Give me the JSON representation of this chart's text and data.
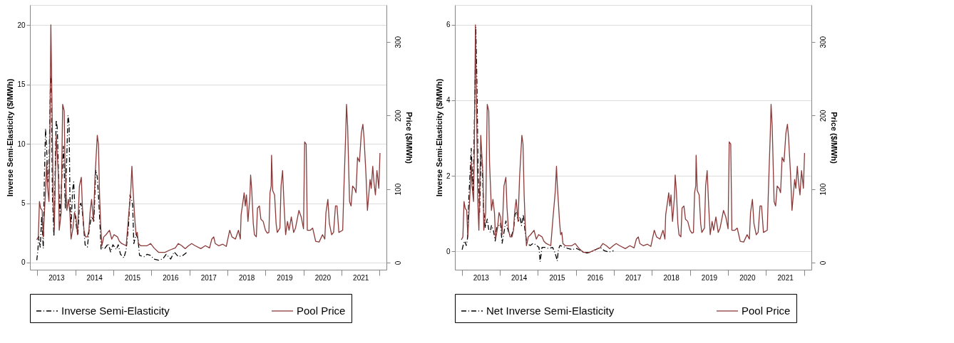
{
  "chart_data": [
    {
      "type": "line",
      "xlim": [
        2012.81,
        2022.18
      ],
      "ylim": [
        -0.6,
        21.7
      ],
      "yticks": [
        0,
        5,
        10,
        15,
        20
      ],
      "y2lim": [
        -9.6,
        350
      ],
      "y2ticks": [
        0,
        100,
        200,
        300
      ],
      "xticks": [
        {
          "value": 2013,
          "label": null
        },
        {
          "value": 2013.5,
          "label": "2013"
        },
        {
          "value": 2014,
          "label": null
        },
        {
          "value": 2014.5,
          "label": "2014"
        },
        {
          "value": 2015,
          "label": null
        },
        {
          "value": 2015.5,
          "label": "2015"
        },
        {
          "value": 2016,
          "label": null
        },
        {
          "value": 2016.5,
          "label": "2016"
        },
        {
          "value": 2017,
          "label": null
        },
        {
          "value": 2017.5,
          "label": "2017"
        },
        {
          "value": 2018,
          "label": null
        },
        {
          "value": 2018.5,
          "label": "2018"
        },
        {
          "value": 2019,
          "label": null
        },
        {
          "value": 2019.5,
          "label": "2019"
        },
        {
          "value": 2020,
          "label": null
        },
        {
          "value": 2020.5,
          "label": "2020"
        },
        {
          "value": 2021,
          "label": null
        },
        {
          "value": 2021.5,
          "label": "2021"
        },
        {
          "value": 2022,
          "label": null
        }
      ],
      "ylabel": "Inverse Semi-Elasticity ($/MWh)",
      "y2label": "Price ($/MWh)",
      "grid": "y",
      "legend": "bottom",
      "series": [
        {
          "name": "Inverse Semi-Elasticity",
          "color": "#000000",
          "line_style": "dashed",
          "x": [
            2012.99,
            2013.02,
            2013.04,
            2013.08,
            2013.12,
            2013.16,
            2013.19,
            2013.22,
            2013.25,
            2013.28,
            2013.31,
            2013.35,
            2013.37,
            2013.4,
            2013.44,
            2013.5,
            2013.53,
            2013.56,
            2013.6,
            2013.64,
            2013.69,
            2013.74,
            2013.78,
            2013.81,
            2013.84,
            2013.86,
            2013.89,
            2013.93,
            2013.96,
            2014.0,
            2014.04,
            2014.07,
            2014.11,
            2014.15,
            2014.19,
            2014.26,
            2014.32,
            2014.37,
            2014.43,
            2014.49,
            2014.54,
            2014.58,
            2014.61,
            2014.64,
            2014.68,
            2014.73,
            2014.78,
            2014.87,
            2014.93,
            2014.99,
            2015.08,
            2015.13,
            2015.19,
            2015.28,
            2015.34,
            2015.4,
            2015.44,
            2015.49,
            2015.51,
            2015.54,
            2015.6,
            2015.65,
            2015.69,
            2015.81,
            2015.89,
            2015.98,
            2016.07,
            2016.19,
            2016.3,
            2016.39,
            2016.51,
            2016.6,
            2016.71,
            2016.83,
            2016.95
          ],
          "values": [
            0.2,
            1.1,
            2.2,
            1.3,
            3.9,
            1.2,
            7.2,
            11.3,
            9.6,
            6.8,
            7.6,
            15.7,
            15.4,
            5.7,
            2.2,
            12.0,
            11.3,
            7.6,
            3.9,
            6.5,
            9.8,
            4.6,
            9.1,
            12.4,
            11.7,
            5.7,
            2.9,
            6.1,
            6.8,
            3.9,
            2.8,
            2.4,
            4.8,
            5.0,
            4.2,
            1.5,
            1.3,
            2.9,
            3.9,
            3.5,
            7.8,
            7.2,
            5.7,
            3.9,
            1.1,
            1.3,
            1.2,
            1.6,
            0.9,
            1.5,
            1.1,
            1.5,
            0.7,
            0.4,
            1.1,
            3.1,
            5.7,
            5.2,
            4.8,
            1.6,
            2.4,
            2.0,
            0.6,
            0.5,
            0.7,
            0.6,
            0.3,
            0.2,
            0.3,
            0.7,
            0.3,
            0.9,
            0.5,
            0.6,
            0.9
          ]
        },
        {
          "name": "Pool Price",
          "color": "#8b3a3a",
          "axis": "y2",
          "line_style": "solid",
          "x": [
            2012.99,
            2013.03,
            2013.06,
            2013.09,
            2013.13,
            2013.16,
            2013.19,
            2013.22,
            2013.25,
            2013.27,
            2013.31,
            2013.33,
            2013.36,
            2013.39,
            2013.42,
            2013.45,
            2013.5,
            2013.56,
            2013.58,
            2013.63,
            2013.67,
            2013.71,
            2013.73,
            2013.78,
            2013.82,
            2013.86,
            2013.89,
            2013.94,
            2013.98,
            2014.02,
            2014.06,
            2014.11,
            2014.16,
            2014.19,
            2014.23,
            2014.27,
            2014.32,
            2014.36,
            2014.39,
            2014.43,
            2014.48,
            2014.52,
            2014.58,
            2014.61,
            2014.64,
            2014.67,
            2014.7,
            2014.75,
            2014.81,
            2014.9,
            2014.96,
            2015.02,
            2015.11,
            2015.16,
            2015.22,
            2015.34,
            2015.4,
            2015.46,
            2015.49,
            2015.51,
            2015.57,
            2015.6,
            2015.63,
            2015.66,
            2015.72,
            2015.89,
            2015.98,
            2016.07,
            2016.19,
            2016.36,
            2016.48,
            2016.63,
            2016.71,
            2016.8,
            2016.89,
            2016.98,
            2017.06,
            2017.15,
            2017.3,
            2017.42,
            2017.53,
            2017.59,
            2017.64,
            2017.68,
            2017.77,
            2017.88,
            2017.97,
            2018.06,
            2018.12,
            2018.21,
            2018.29,
            2018.34,
            2018.36,
            2018.41,
            2018.44,
            2018.47,
            2018.5,
            2018.54,
            2018.59,
            2018.61,
            2018.64,
            2018.68,
            2018.71,
            2018.76,
            2018.79,
            2018.84,
            2018.88,
            2018.94,
            2019.0,
            2019.05,
            2019.09,
            2019.12,
            2019.15,
            2019.16,
            2019.19,
            2019.24,
            2019.28,
            2019.31,
            2019.38,
            2019.41,
            2019.45,
            2019.49,
            2019.53,
            2019.58,
            2019.62,
            2019.68,
            2019.74,
            2019.79,
            2019.88,
            2019.94,
            2020.0,
            2020.03,
            2020.07,
            2020.1,
            2020.18,
            2020.24,
            2020.32,
            2020.41,
            2020.5,
            2020.56,
            2020.59,
            2020.64,
            2020.68,
            2020.74,
            2020.79,
            2020.84,
            2020.88,
            2020.93,
            2021.03,
            2021.06,
            2021.11,
            2021.13,
            2021.16,
            2021.21,
            2021.25,
            2021.29,
            2021.34,
            2021.38,
            2021.42,
            2021.47,
            2021.52,
            2021.56,
            2021.59,
            2021.64,
            2021.68,
            2021.72,
            2021.75,
            2021.78,
            2021.82,
            2021.85,
            2021.89,
            2021.93,
            2021.95,
            2021.98,
            2022.01
          ],
          "values": [
            31,
            35,
            83,
            74,
            71,
            35,
            68,
            98,
            137,
            104,
            83,
            152,
            323,
            212,
            86,
            44,
            173,
            116,
            44,
            68,
            215,
            206,
            137,
            71,
            86,
            68,
            32,
            47,
            68,
            62,
            38,
            104,
            116,
            74,
            44,
            35,
            35,
            44,
            68,
            86,
            56,
            116,
            173,
            161,
            92,
            50,
            23,
            35,
            38,
            44,
            32,
            38,
            35,
            29,
            26,
            23,
            62,
            98,
            131,
            107,
            56,
            38,
            41,
            26,
            23,
            23,
            26,
            20,
            14,
            14,
            17,
            20,
            26,
            23,
            19,
            23,
            26,
            23,
            19,
            23,
            20,
            32,
            35,
            26,
            23,
            25,
            22,
            44,
            35,
            32,
            44,
            32,
            65,
            83,
            95,
            77,
            92,
            56,
            89,
            119,
            98,
            53,
            38,
            35,
            74,
            77,
            59,
            56,
            44,
            40,
            41,
            95,
            104,
            146,
            98,
            92,
            53,
            41,
            47,
            104,
            125,
            77,
            38,
            56,
            44,
            62,
            41,
            47,
            71,
            62,
            46,
            164,
            161,
            44,
            44,
            47,
            29,
            28,
            38,
            32,
            68,
            86,
            53,
            38,
            41,
            77,
            77,
            41,
            44,
            98,
            176,
            215,
            185,
            83,
            77,
            104,
            101,
            95,
            143,
            137,
            176,
            188,
            170,
            122,
            71,
            95,
            113,
            101,
            131,
            110,
            92,
            125,
            116,
            101,
            149
          ]
        }
      ]
    },
    {
      "type": "line",
      "xlim": [
        2012.82,
        2022.19
      ],
      "ylim": [
        -0.48,
        6.52
      ],
      "yticks": [
        0,
        2,
        4,
        6
      ],
      "y2lim": [
        -9.6,
        350
      ],
      "y2ticks": [
        0,
        100,
        200,
        300
      ],
      "xticks": [
        {
          "value": 2013,
          "label": null
        },
        {
          "value": 2013.5,
          "label": "2013"
        },
        {
          "value": 2014,
          "label": null
        },
        {
          "value": 2014.5,
          "label": "2014"
        },
        {
          "value": 2015,
          "label": null
        },
        {
          "value": 2015.5,
          "label": "2015"
        },
        {
          "value": 2016,
          "label": null
        },
        {
          "value": 2016.5,
          "label": "2016"
        },
        {
          "value": 2017,
          "label": null
        },
        {
          "value": 2017.5,
          "label": "2017"
        },
        {
          "value": 2018,
          "label": null
        },
        {
          "value": 2018.5,
          "label": "2018"
        },
        {
          "value": 2019,
          "label": null
        },
        {
          "value": 2019.5,
          "label": "2019"
        },
        {
          "value": 2020,
          "label": null
        },
        {
          "value": 2020.5,
          "label": "2020"
        },
        {
          "value": 2021,
          "label": null
        },
        {
          "value": 2021.5,
          "label": "2021"
        },
        {
          "value": 2022,
          "label": null
        }
      ],
      "ylabel": "Inverse Semi-Elasticity ($/MWh)",
      "y2label": "Price ($/MWh)",
      "grid": "y",
      "legend": "bottom",
      "series": [
        {
          "name": "Net Inverse Semi-Elasticity",
          "color": "#000000",
          "line_style": "dashed",
          "x": [
            2013.01,
            2013.05,
            2013.08,
            2013.12,
            2013.15,
            2013.19,
            2013.22,
            2013.25,
            2013.27,
            2013.3,
            2013.35,
            2013.37,
            2013.4,
            2013.43,
            2013.47,
            2013.51,
            2013.54,
            2013.57,
            2013.62,
            2013.67,
            2013.71,
            2013.75,
            2013.78,
            2013.83,
            2013.88,
            2013.92,
            2013.98,
            2014.02,
            2014.06,
            2014.11,
            2014.16,
            2014.2,
            2014.25,
            2014.3,
            2014.36,
            2014.4,
            2014.44,
            2014.49,
            2014.53,
            2014.57,
            2014.62,
            2014.66,
            2014.71,
            2014.8,
            2014.88,
            2014.97,
            2015.03,
            2015.06,
            2015.11,
            2015.18,
            2015.29,
            2015.39,
            2015.44,
            2015.48,
            2015.51,
            2015.54,
            2015.58,
            2015.67,
            2015.79,
            2015.91,
            2016.02,
            2016.14,
            2016.29,
            2016.4,
            2016.58,
            2016.64,
            2016.75,
            2016.87,
            2016.99
          ],
          "values": [
            0.05,
            0.22,
            0.28,
            0.16,
            0.34,
            1.51,
            2.09,
            2.73,
            2.21,
            1.62,
            4.43,
            5.94,
            4.43,
            2.09,
            1.04,
            2.56,
            2.32,
            1.16,
            0.63,
            0.86,
            0.57,
            0.51,
            0.69,
            0.57,
            0.28,
            0.63,
            0.69,
            0.75,
            0.22,
            0.51,
            0.81,
            0.63,
            0.46,
            0.4,
            0.57,
            0.98,
            1.04,
            0.81,
            0.92,
            0.69,
            0.98,
            0.57,
            0.22,
            0.16,
            0.22,
            0.16,
            0.11,
            -0.27,
            0.11,
            0.11,
            0.08,
            0.11,
            -0.01,
            -0.13,
            -0.25,
            0.05,
            0.16,
            0.13,
            0.08,
            0.05,
            0.08,
            0.02,
            -0.04,
            -0.01,
            0.08,
            0.11,
            0.02,
            -0.01,
            0.02
          ]
        },
        {
          "name": "Pool Price",
          "color": "#8b3a3a",
          "axis": "y2",
          "line_style": "solid",
          "x": [
            2012.99,
            2013.03,
            2013.06,
            2013.09,
            2013.13,
            2013.16,
            2013.19,
            2013.22,
            2013.25,
            2013.27,
            2013.31,
            2013.33,
            2013.36,
            2013.39,
            2013.42,
            2013.45,
            2013.5,
            2013.56,
            2013.58,
            2013.63,
            2013.67,
            2013.71,
            2013.73,
            2013.78,
            2013.82,
            2013.86,
            2013.89,
            2013.94,
            2013.98,
            2014.02,
            2014.06,
            2014.11,
            2014.16,
            2014.19,
            2014.23,
            2014.27,
            2014.32,
            2014.36,
            2014.39,
            2014.43,
            2014.48,
            2014.52,
            2014.58,
            2014.61,
            2014.64,
            2014.67,
            2014.7,
            2014.75,
            2014.81,
            2014.9,
            2014.96,
            2015.02,
            2015.11,
            2015.16,
            2015.22,
            2015.34,
            2015.4,
            2015.46,
            2015.49,
            2015.51,
            2015.57,
            2015.6,
            2015.63,
            2015.66,
            2015.72,
            2015.89,
            2015.98,
            2016.07,
            2016.19,
            2016.36,
            2016.48,
            2016.63,
            2016.71,
            2016.8,
            2016.89,
            2016.98,
            2017.06,
            2017.15,
            2017.3,
            2017.42,
            2017.53,
            2017.59,
            2017.64,
            2017.68,
            2017.77,
            2017.88,
            2017.97,
            2018.06,
            2018.12,
            2018.21,
            2018.29,
            2018.34,
            2018.36,
            2018.41,
            2018.44,
            2018.47,
            2018.5,
            2018.54,
            2018.59,
            2018.61,
            2018.64,
            2018.68,
            2018.71,
            2018.76,
            2018.79,
            2018.84,
            2018.88,
            2018.94,
            2019.0,
            2019.05,
            2019.09,
            2019.12,
            2019.15,
            2019.16,
            2019.19,
            2019.24,
            2019.28,
            2019.31,
            2019.38,
            2019.41,
            2019.45,
            2019.49,
            2019.53,
            2019.58,
            2019.62,
            2019.68,
            2019.74,
            2019.79,
            2019.88,
            2019.94,
            2020.0,
            2020.03,
            2020.07,
            2020.1,
            2020.18,
            2020.24,
            2020.32,
            2020.41,
            2020.5,
            2020.56,
            2020.59,
            2020.64,
            2020.68,
            2020.74,
            2020.79,
            2020.84,
            2020.88,
            2020.93,
            2021.03,
            2021.06,
            2021.11,
            2021.13,
            2021.16,
            2021.21,
            2021.25,
            2021.29,
            2021.34,
            2021.38,
            2021.42,
            2021.47,
            2021.52,
            2021.56,
            2021.59,
            2021.64,
            2021.68,
            2021.72,
            2021.75,
            2021.78,
            2021.82,
            2021.85,
            2021.89,
            2021.93,
            2021.95,
            2021.98,
            2022.01
          ],
          "values": [
            31,
            35,
            83,
            74,
            71,
            35,
            68,
            98,
            137,
            104,
            83,
            152,
            323,
            212,
            86,
            44,
            173,
            116,
            44,
            68,
            215,
            206,
            137,
            71,
            86,
            68,
            32,
            47,
            68,
            62,
            38,
            104,
            116,
            74,
            44,
            35,
            35,
            44,
            68,
            86,
            56,
            116,
            173,
            161,
            92,
            50,
            23,
            35,
            38,
            44,
            32,
            38,
            35,
            29,
            26,
            23,
            62,
            98,
            131,
            107,
            56,
            38,
            41,
            26,
            23,
            23,
            26,
            20,
            14,
            14,
            17,
            20,
            26,
            23,
            19,
            23,
            26,
            23,
            19,
            23,
            20,
            32,
            35,
            26,
            23,
            25,
            22,
            44,
            35,
            32,
            44,
            32,
            65,
            83,
            95,
            77,
            92,
            56,
            89,
            119,
            98,
            53,
            38,
            35,
            74,
            77,
            59,
            56,
            44,
            40,
            41,
            95,
            104,
            146,
            98,
            92,
            53,
            41,
            47,
            104,
            125,
            77,
            38,
            56,
            44,
            62,
            41,
            47,
            71,
            62,
            46,
            164,
            161,
            44,
            44,
            47,
            29,
            28,
            38,
            32,
            68,
            86,
            53,
            38,
            41,
            77,
            77,
            41,
            44,
            98,
            176,
            215,
            185,
            83,
            77,
            104,
            101,
            95,
            143,
            137,
            176,
            188,
            170,
            122,
            71,
            95,
            113,
            101,
            131,
            110,
            92,
            125,
            116,
            101,
            149
          ]
        }
      ]
    }
  ]
}
